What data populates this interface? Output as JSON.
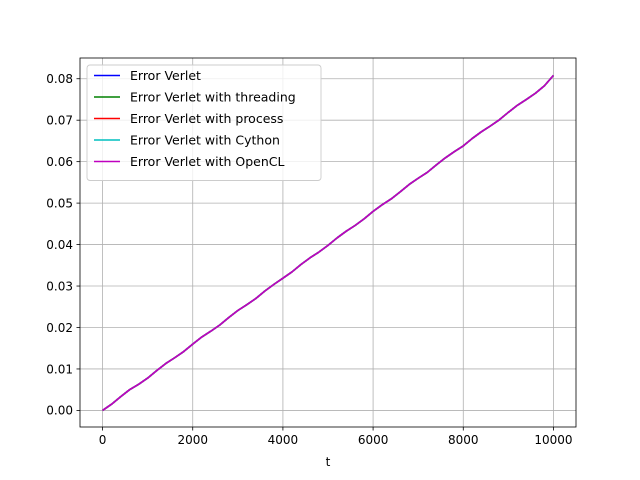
{
  "chart_data": {
    "type": "line",
    "title": "",
    "xlabel": "t",
    "ylabel": "",
    "xlim": [
      -500,
      10500
    ],
    "ylim": [
      -0.004,
      0.085
    ],
    "grid": true,
    "legend_position": "top-left",
    "x_ticks": [
      0,
      2000,
      4000,
      6000,
      8000,
      10000
    ],
    "x_tick_labels": [
      "0",
      "2000",
      "4000",
      "6000",
      "8000",
      "10000"
    ],
    "y_ticks": [
      0.0,
      0.01,
      0.02,
      0.03,
      0.04,
      0.05,
      0.06,
      0.07,
      0.08
    ],
    "y_tick_labels": [
      "0.00",
      "0.01",
      "0.02",
      "0.03",
      "0.04",
      "0.05",
      "0.06",
      "0.07",
      "0.08"
    ],
    "x": [
      0,
      200,
      400,
      600,
      800,
      1000,
      1200,
      1400,
      1600,
      1800,
      2000,
      2200,
      2400,
      2600,
      2800,
      3000,
      3200,
      3400,
      3600,
      3800,
      4000,
      4200,
      4400,
      4600,
      4800,
      5000,
      5200,
      5400,
      5600,
      5800,
      6000,
      6200,
      6400,
      6600,
      6800,
      7000,
      7200,
      7400,
      7600,
      7800,
      8000,
      8200,
      8400,
      8600,
      8800,
      9000,
      9200,
      9400,
      9600,
      9800,
      10000
    ],
    "series": [
      {
        "name": "Error Verlet",
        "color": "#0000ff",
        "values": [
          0.0,
          0.0015,
          0.0033,
          0.005,
          0.0063,
          0.0078,
          0.0096,
          0.0113,
          0.0127,
          0.0142,
          0.016,
          0.0177,
          0.0191,
          0.0206,
          0.0224,
          0.0241,
          0.0255,
          0.027,
          0.0288,
          0.0304,
          0.0319,
          0.0334,
          0.0352,
          0.0368,
          0.0382,
          0.0398,
          0.0416,
          0.0432,
          0.0446,
          0.0462,
          0.048,
          0.0496,
          0.051,
          0.0527,
          0.0545,
          0.056,
          0.0574,
          0.0592,
          0.0609,
          0.0624,
          0.0638,
          0.0656,
          0.0672,
          0.0686,
          0.0701,
          0.0719,
          0.0736,
          0.075,
          0.0765,
          0.0783,
          0.0808
        ]
      },
      {
        "name": "Error Verlet with threading",
        "color": "#008000",
        "values": [
          0.0,
          0.0015,
          0.0033,
          0.005,
          0.0063,
          0.0078,
          0.0096,
          0.0113,
          0.0127,
          0.0142,
          0.016,
          0.0177,
          0.0191,
          0.0206,
          0.0224,
          0.0241,
          0.0255,
          0.027,
          0.0288,
          0.0304,
          0.0319,
          0.0334,
          0.0352,
          0.0368,
          0.0382,
          0.0398,
          0.0416,
          0.0432,
          0.0446,
          0.0462,
          0.048,
          0.0496,
          0.051,
          0.0527,
          0.0545,
          0.056,
          0.0574,
          0.0592,
          0.0609,
          0.0624,
          0.0638,
          0.0656,
          0.0672,
          0.0686,
          0.0701,
          0.0719,
          0.0736,
          0.075,
          0.0765,
          0.0783,
          0.0808
        ]
      },
      {
        "name": "Error Verlet with process",
        "color": "#ff0000",
        "values": [
          0.0,
          0.0015,
          0.0033,
          0.005,
          0.0063,
          0.0078,
          0.0096,
          0.0113,
          0.0127,
          0.0142,
          0.016,
          0.0177,
          0.0191,
          0.0206,
          0.0224,
          0.0241,
          0.0255,
          0.027,
          0.0288,
          0.0304,
          0.0319,
          0.0334,
          0.0352,
          0.0368,
          0.0382,
          0.0398,
          0.0416,
          0.0432,
          0.0446,
          0.0462,
          0.048,
          0.0496,
          0.051,
          0.0527,
          0.0545,
          0.056,
          0.0574,
          0.0592,
          0.0609,
          0.0624,
          0.0638,
          0.0656,
          0.0672,
          0.0686,
          0.0701,
          0.0719,
          0.0736,
          0.075,
          0.0765,
          0.0783,
          0.0808
        ]
      },
      {
        "name": "Error Verlet with Cython",
        "color": "#00bfbf",
        "values": [
          0.0,
          0.0015,
          0.0033,
          0.005,
          0.0063,
          0.0078,
          0.0096,
          0.0113,
          0.0127,
          0.0142,
          0.016,
          0.0177,
          0.0191,
          0.0206,
          0.0224,
          0.0241,
          0.0255,
          0.027,
          0.0288,
          0.0304,
          0.0319,
          0.0334,
          0.0352,
          0.0368,
          0.0382,
          0.0398,
          0.0416,
          0.0432,
          0.0446,
          0.0462,
          0.048,
          0.0496,
          0.051,
          0.0527,
          0.0545,
          0.056,
          0.0574,
          0.0592,
          0.0609,
          0.0624,
          0.0638,
          0.0656,
          0.0672,
          0.0686,
          0.0701,
          0.0719,
          0.0736,
          0.075,
          0.0765,
          0.0783,
          0.0808
        ]
      },
      {
        "name": "Error Verlet with OpenCL",
        "color": "#bf00bf",
        "values": [
          0.0,
          0.0015,
          0.0033,
          0.005,
          0.0063,
          0.0078,
          0.0096,
          0.0113,
          0.0127,
          0.0142,
          0.016,
          0.0177,
          0.0191,
          0.0206,
          0.0224,
          0.0241,
          0.0255,
          0.027,
          0.0288,
          0.0304,
          0.0319,
          0.0334,
          0.0352,
          0.0368,
          0.0382,
          0.0398,
          0.0416,
          0.0432,
          0.0446,
          0.0462,
          0.048,
          0.0496,
          0.051,
          0.0527,
          0.0545,
          0.056,
          0.0574,
          0.0592,
          0.0609,
          0.0624,
          0.0638,
          0.0656,
          0.0672,
          0.0686,
          0.0701,
          0.0719,
          0.0736,
          0.075,
          0.0765,
          0.0783,
          0.0808
        ]
      }
    ]
  }
}
